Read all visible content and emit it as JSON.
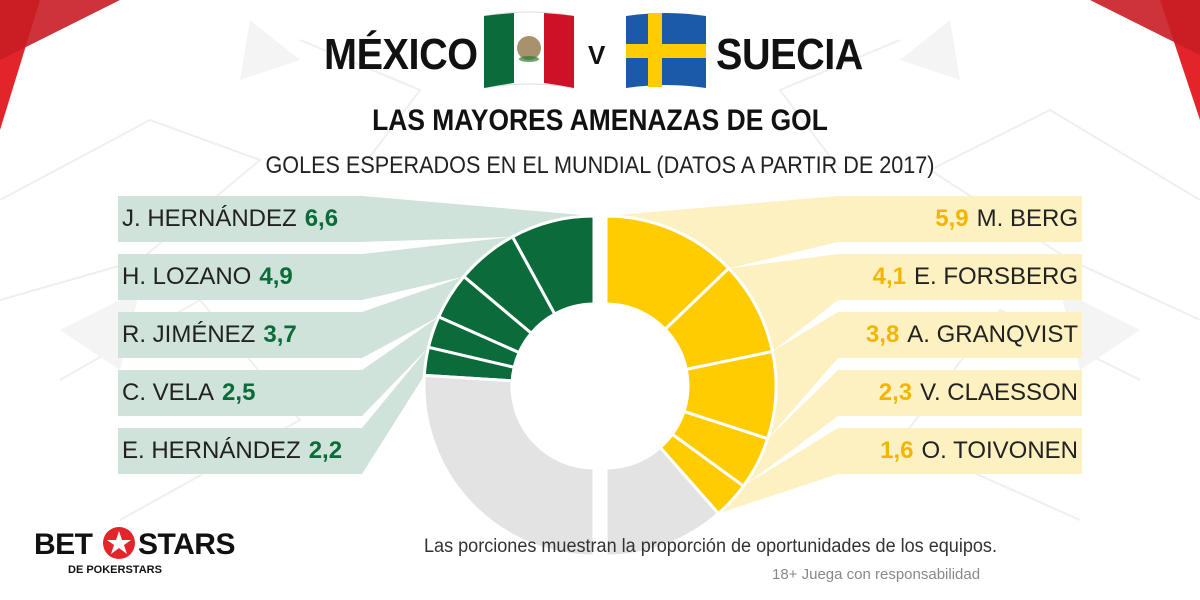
{
  "header": {
    "team_left": "MÉXICO",
    "vs": "V",
    "team_right": "SUECIA",
    "title": "LAS MAYORES AMENAZAS DE GOL",
    "subtitle": "GOLES ESPERADOS EN EL MUNDIAL (DATOS A PARTIR DE 2017)"
  },
  "colors": {
    "mexico": "#0b6b3a",
    "mexico_light": "#cfe3da",
    "sweden": "#fecc00",
    "sweden_light": "#fdf1c2",
    "remainder": "#e3e3e3",
    "brand_red": "#e2242b"
  },
  "footer": {
    "note": "Las porciones muestran la proporción de oportunidades de los equipos.",
    "responsibility": "18+ Juega con responsabilidad",
    "logo_word_1": "BET",
    "logo_word_2": "STARS",
    "logo_sub": "DE POKERSTARS"
  },
  "chart_data": [
    {
      "type": "pie",
      "title": "MÉXICO",
      "series": [
        {
          "name": "J. HERNÁNDEZ",
          "value": 6.6,
          "display": "6,6"
        },
        {
          "name": "H. LOZANO",
          "value": 4.9,
          "display": "4,9"
        },
        {
          "name": "R. JIMÉNEZ",
          "value": 3.7,
          "display": "3,7"
        },
        {
          "name": "C. VELA",
          "value": 2.5,
          "display": "2,5"
        },
        {
          "name": "E. HERNÁNDEZ",
          "value": 2.2,
          "display": "2,2"
        }
      ],
      "remainder_share": 0.52
    },
    {
      "type": "pie",
      "title": "SUECIA",
      "series": [
        {
          "name": "M. BERG",
          "value": 5.9,
          "display": "5,9"
        },
        {
          "name": "E. FORSBERG",
          "value": 4.1,
          "display": "4,1"
        },
        {
          "name": "A. GRANQVIST",
          "value": 3.8,
          "display": "3,8"
        },
        {
          "name": "V. CLAESSON",
          "value": 2.3,
          "display": "2,3"
        },
        {
          "name": "O. TOIVONEN",
          "value": 1.6,
          "display": "1,6"
        }
      ],
      "remainder_share": 0.23
    }
  ]
}
